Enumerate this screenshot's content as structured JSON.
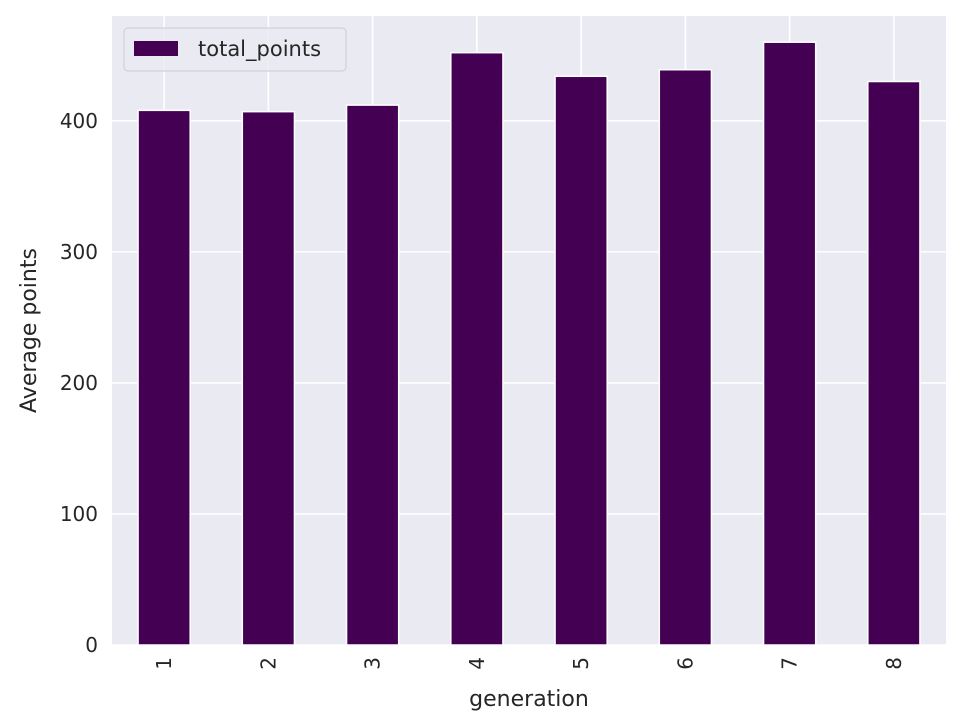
{
  "chart_data": {
    "type": "bar",
    "categories": [
      "1",
      "2",
      "3",
      "4",
      "5",
      "6",
      "7",
      "8"
    ],
    "series": [
      {
        "name": "total_points",
        "values": [
          408,
          407,
          412,
          452,
          434,
          439,
          460,
          430
        ]
      }
    ],
    "xlabel": "generation",
    "ylabel": "Average points",
    "ylim": [
      0,
      480
    ],
    "yticks": [
      0,
      100,
      200,
      300,
      400
    ],
    "grid": true,
    "legend_position": "top-left",
    "colors": {
      "bar": "#440154",
      "plot_background": "#EAEAF2",
      "grid": "#FFFFFF",
      "text": "#262626"
    }
  }
}
